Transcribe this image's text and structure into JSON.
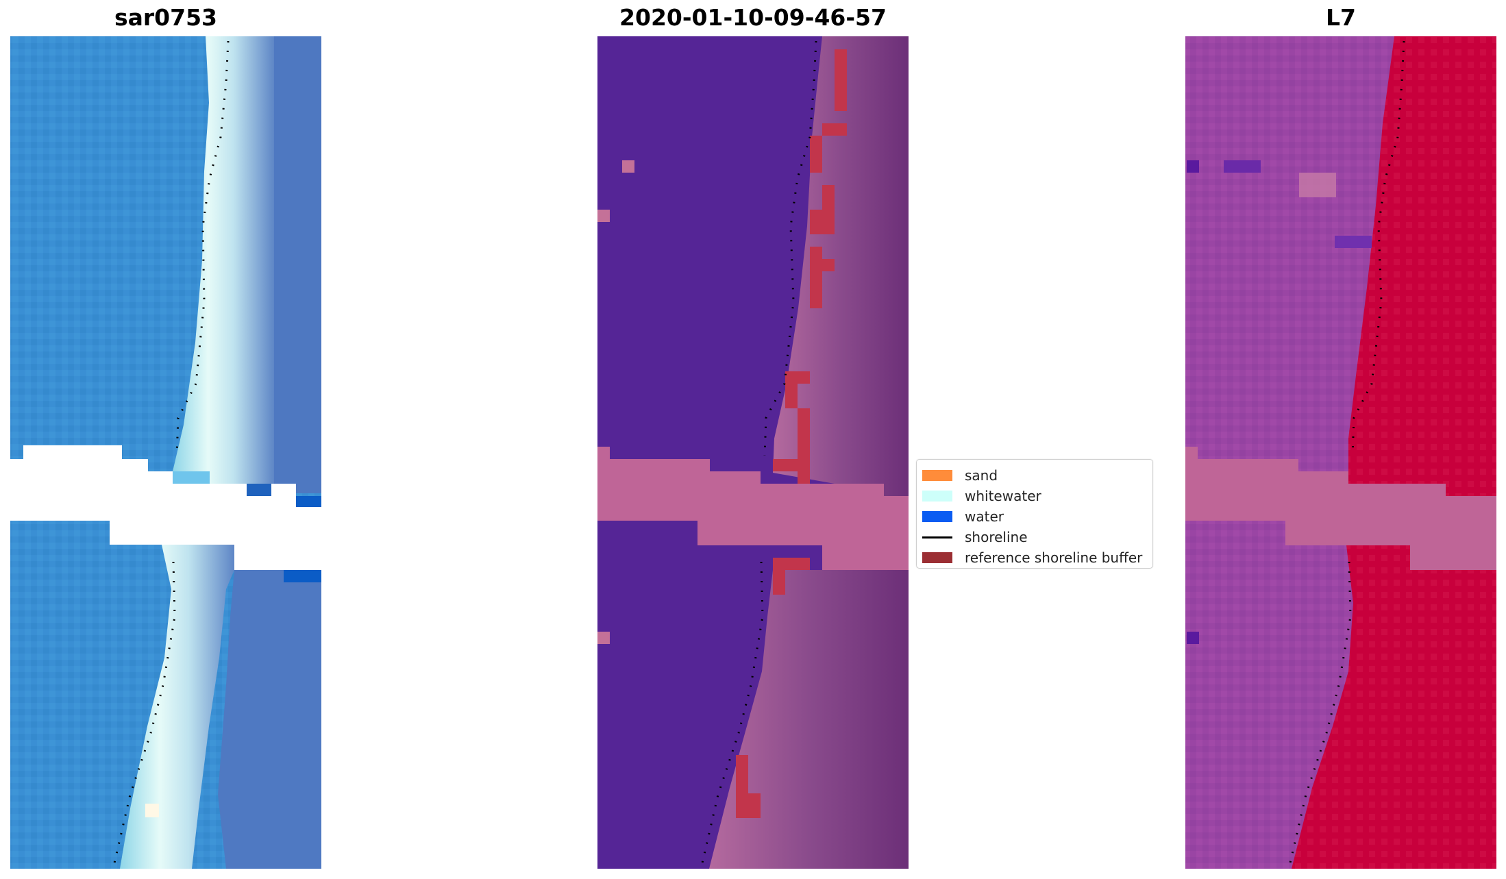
{
  "panels": {
    "left_title": "sar0753",
    "middle_title": "2020-01-10-09-46-57",
    "right_title": "L7"
  },
  "legend": {
    "items": [
      {
        "label": "sand",
        "color": "#ff8c3a",
        "kind": "box"
      },
      {
        "label": "whitewater",
        "color": "#cdfffa",
        "kind": "box"
      },
      {
        "label": "water",
        "color": "#0a5cf2",
        "kind": "box"
      },
      {
        "label": "shoreline",
        "color": "#000000",
        "kind": "line"
      },
      {
        "label": "reference shoreline buffer",
        "color": "#9b2e33",
        "kind": "box"
      }
    ]
  },
  "colors": {
    "rgb_water": "#3a8fd4",
    "rgb_whitewater": "#dff7f7",
    "rgb_land": "#4f79c2",
    "classified_water": "#552596",
    "classified_land": "#7b3a80",
    "buffer_pink": "#bf6597",
    "buffer_red": "#c2354b",
    "l7_water": "#9b43a3",
    "l7_land": "#c6003a"
  }
}
